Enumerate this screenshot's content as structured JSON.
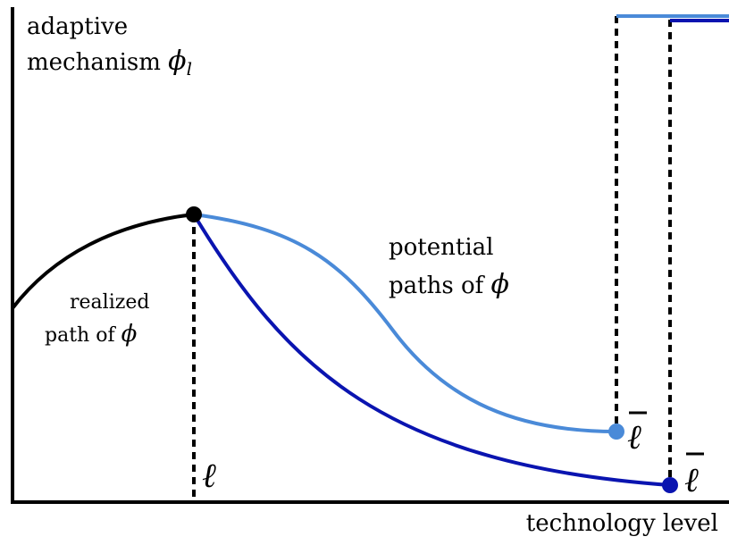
{
  "y_axis_label": {
    "line1": "adaptive",
    "line2": "mechanism ",
    "symbol": "ϕ",
    "subscript": "l"
  },
  "x_axis_label": "technology level",
  "realized_label": {
    "line1": "realized",
    "line2": "path of ",
    "symbol": "ϕ"
  },
  "potential_label": {
    "line1": "potential",
    "line2": "paths of ",
    "symbol": "ϕ"
  },
  "markers": {
    "ell": "ℓ",
    "ell_bar_light": "ℓ",
    "ell_bar_dark": "ℓ"
  }
}
